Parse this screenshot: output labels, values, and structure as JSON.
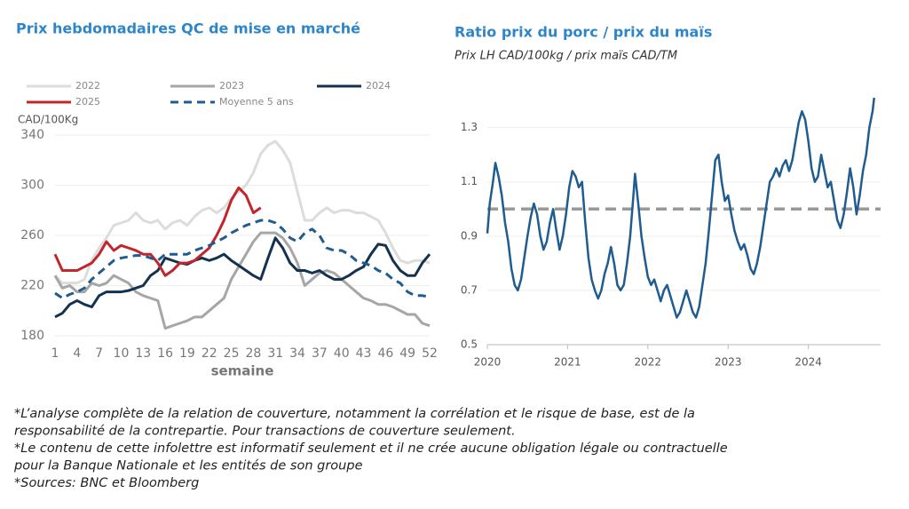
{
  "chart_data": [
    {
      "type": "line",
      "title": "Prix hebdomadaires QC de mise en marché",
      "y_label": "CAD/100Kg",
      "x_label": "semaine",
      "x": [
        1,
        2,
        3,
        4,
        5,
        6,
        7,
        8,
        9,
        10,
        11,
        12,
        13,
        14,
        15,
        16,
        17,
        18,
        19,
        20,
        21,
        22,
        23,
        24,
        25,
        26,
        27,
        28,
        29,
        30,
        31,
        32,
        33,
        34,
        35,
        36,
        37,
        38,
        39,
        40,
        41,
        42,
        43,
        44,
        45,
        46,
        47,
        48,
        49,
        50,
        51,
        52
      ],
      "xlim": [
        1,
        52
      ],
      "xticks": [
        1,
        4,
        7,
        10,
        13,
        16,
        19,
        22,
        25,
        28,
        31,
        34,
        37,
        40,
        43,
        46,
        49,
        52
      ],
      "ylim": [
        180,
        340
      ],
      "yticks": [
        180,
        220,
        260,
        300,
        340
      ],
      "grid": true,
      "legend": "top",
      "series": [
        {
          "name": "2022",
          "color": "#dcdcdc",
          "values": [
            228,
            222,
            222,
            222,
            225,
            240,
            250,
            258,
            268,
            270,
            272,
            278,
            272,
            270,
            272,
            265,
            270,
            272,
            268,
            275,
            280,
            282,
            278,
            282,
            290,
            295,
            300,
            310,
            325,
            332,
            335,
            328,
            318,
            295,
            272,
            272,
            278,
            282,
            278,
            280,
            280,
            278,
            278,
            275,
            272,
            262,
            250,
            240,
            238,
            240,
            240,
            238
          ]
        },
        {
          "name": "2023",
          "color": "#a6a6a6",
          "values": [
            228,
            218,
            220,
            215,
            215,
            222,
            220,
            222,
            228,
            225,
            222,
            215,
            212,
            210,
            208,
            186,
            188,
            190,
            192,
            195,
            195,
            200,
            205,
            210,
            225,
            235,
            245,
            255,
            262,
            262,
            262,
            258,
            250,
            238,
            220,
            225,
            230,
            232,
            230,
            225,
            220,
            215,
            210,
            208,
            205,
            205,
            203,
            200,
            197,
            197,
            190,
            188
          ]
        },
        {
          "name": "2024",
          "color": "#14324f",
          "values": [
            195,
            198,
            205,
            208,
            205,
            203,
            212,
            215,
            215,
            215,
            216,
            218,
            220,
            228,
            232,
            242,
            240,
            238,
            237,
            240,
            242,
            240,
            242,
            245,
            240,
            236,
            232,
            228,
            225,
            242,
            258,
            250,
            238,
            232,
            232,
            230,
            232,
            228,
            225,
            225,
            228,
            232,
            235,
            245,
            253,
            252,
            240,
            232,
            228,
            228,
            238,
            245
          ]
        },
        {
          "name": "2025",
          "color": "#c0262b",
          "values": [
            245,
            232,
            232,
            232,
            235,
            238,
            245,
            255,
            248,
            252,
            250,
            248,
            245,
            245,
            238,
            228,
            232,
            238,
            238,
            240,
            245,
            250,
            260,
            272,
            288,
            298,
            292,
            278,
            282,
            null,
            null,
            null,
            null,
            null,
            null,
            null,
            null,
            null,
            null,
            null,
            null,
            null,
            null,
            null,
            null,
            null,
            null,
            null,
            null,
            null,
            null,
            null
          ]
        },
        {
          "name": "Moyenne 5 ans",
          "color": "#1f5c8f",
          "dash": true,
          "values": [
            214,
            210,
            213,
            215,
            218,
            225,
            230,
            235,
            240,
            242,
            243,
            244,
            244,
            242,
            240,
            245,
            245,
            245,
            245,
            248,
            250,
            252,
            255,
            258,
            262,
            265,
            268,
            270,
            272,
            272,
            270,
            265,
            258,
            255,
            262,
            265,
            260,
            250,
            248,
            248,
            245,
            240,
            238,
            236,
            232,
            230,
            225,
            222,
            215,
            212,
            212,
            211
          ]
        }
      ]
    },
    {
      "type": "line",
      "title": "Ratio prix du porc / prix du maïs",
      "subtitle": "Prix LH CAD/100kg / prix maïs CAD/TM",
      "x": [
        2020.0,
        2020.03,
        2020.07,
        2020.1,
        2020.14,
        2020.18,
        2020.22,
        2020.26,
        2020.3,
        2020.34,
        2020.38,
        2020.42,
        2020.46,
        2020.5,
        2020.54,
        2020.58,
        2020.62,
        2020.66,
        2020.7,
        2020.74,
        2020.78,
        2020.82,
        2020.86,
        2020.9,
        2020.94,
        2020.98,
        2021.02,
        2021.06,
        2021.1,
        2021.14,
        2021.18,
        2021.22,
        2021.26,
        2021.3,
        2021.34,
        2021.38,
        2021.42,
        2021.46,
        2021.5,
        2021.54,
        2021.58,
        2021.62,
        2021.66,
        2021.7,
        2021.74,
        2021.78,
        2021.82,
        2021.84,
        2021.88,
        2021.92,
        2021.96,
        2022.0,
        2022.04,
        2022.08,
        2022.12,
        2022.16,
        2022.2,
        2022.24,
        2022.28,
        2022.32,
        2022.36,
        2022.4,
        2022.44,
        2022.48,
        2022.52,
        2022.56,
        2022.6,
        2022.64,
        2022.68,
        2022.72,
        2022.76,
        2022.8,
        2022.84,
        2022.88,
        2022.92,
        2022.96,
        2023.0,
        2023.04,
        2023.08,
        2023.12,
        2023.16,
        2023.2,
        2023.24,
        2023.28,
        2023.32,
        2023.36,
        2023.4,
        2023.44,
        2023.48,
        2023.52,
        2023.56,
        2023.6,
        2023.64,
        2023.68,
        2023.72,
        2023.76,
        2023.8,
        2023.84,
        2023.88,
        2023.92,
        2023.96,
        2024.0,
        2024.04,
        2024.08,
        2024.12,
        2024.16,
        2024.2,
        2024.24,
        2024.28,
        2024.32,
        2024.36,
        2024.4,
        2024.44,
        2024.48,
        2024.52,
        2024.56,
        2024.6,
        2024.64,
        2024.68,
        2024.72,
        2024.76,
        2024.8,
        2024.82
      ],
      "values": [
        0.91,
        1.02,
        1.1,
        1.17,
        1.12,
        1.05,
        0.95,
        0.88,
        0.78,
        0.72,
        0.7,
        0.74,
        0.82,
        0.9,
        0.97,
        1.02,
        0.98,
        0.9,
        0.85,
        0.88,
        0.95,
        1.0,
        0.92,
        0.85,
        0.9,
        0.98,
        1.08,
        1.14,
        1.12,
        1.08,
        1.1,
        0.95,
        0.82,
        0.74,
        0.7,
        0.67,
        0.7,
        0.76,
        0.8,
        0.86,
        0.8,
        0.72,
        0.7,
        0.72,
        0.8,
        0.9,
        1.05,
        1.13,
        1.02,
        0.9,
        0.82,
        0.75,
        0.72,
        0.74,
        0.7,
        0.66,
        0.7,
        0.72,
        0.68,
        0.64,
        0.6,
        0.62,
        0.66,
        0.7,
        0.66,
        0.62,
        0.6,
        0.64,
        0.72,
        0.8,
        0.92,
        1.05,
        1.18,
        1.2,
        1.1,
        1.03,
        1.05,
        0.98,
        0.92,
        0.88,
        0.85,
        0.87,
        0.83,
        0.78,
        0.76,
        0.8,
        0.86,
        0.94,
        1.02,
        1.1,
        1.12,
        1.15,
        1.12,
        1.16,
        1.18,
        1.14,
        1.18,
        1.25,
        1.32,
        1.36,
        1.33,
        1.25,
        1.15,
        1.1,
        1.12,
        1.2,
        1.14,
        1.08,
        1.1,
        1.03,
        0.96,
        0.93,
        0.98,
        1.06,
        1.15,
        1.08,
        0.98,
        1.05,
        1.14,
        1.2,
        1.3,
        1.36,
        1.41
      ],
      "color": "#1f5c8f",
      "xlim": [
        2020,
        2024.9
      ],
      "xticks": [
        2020,
        2021,
        2022,
        2023,
        2024
      ],
      "ylim": [
        0.5,
        1.42
      ],
      "yticks": [
        0.5,
        0.7,
        0.9,
        1.1,
        1.3
      ],
      "grid": true,
      "reference_line": 1.0,
      "reference_color": "#999999"
    }
  ],
  "notes": [
    "*L’analyse complète de la relation de couverture, notamment la corrélation et le risque de base, est de la",
    "responsabilité de la contrepartie. Pour transactions de couverture seulement.",
    "*Le contenu de cette infolettre est informatif seulement et il ne crée aucune obligation légale ou contractuelle",
    "pour la Banque Nationale et les entités de son groupe",
    "*Sources: BNC et Bloomberg"
  ]
}
